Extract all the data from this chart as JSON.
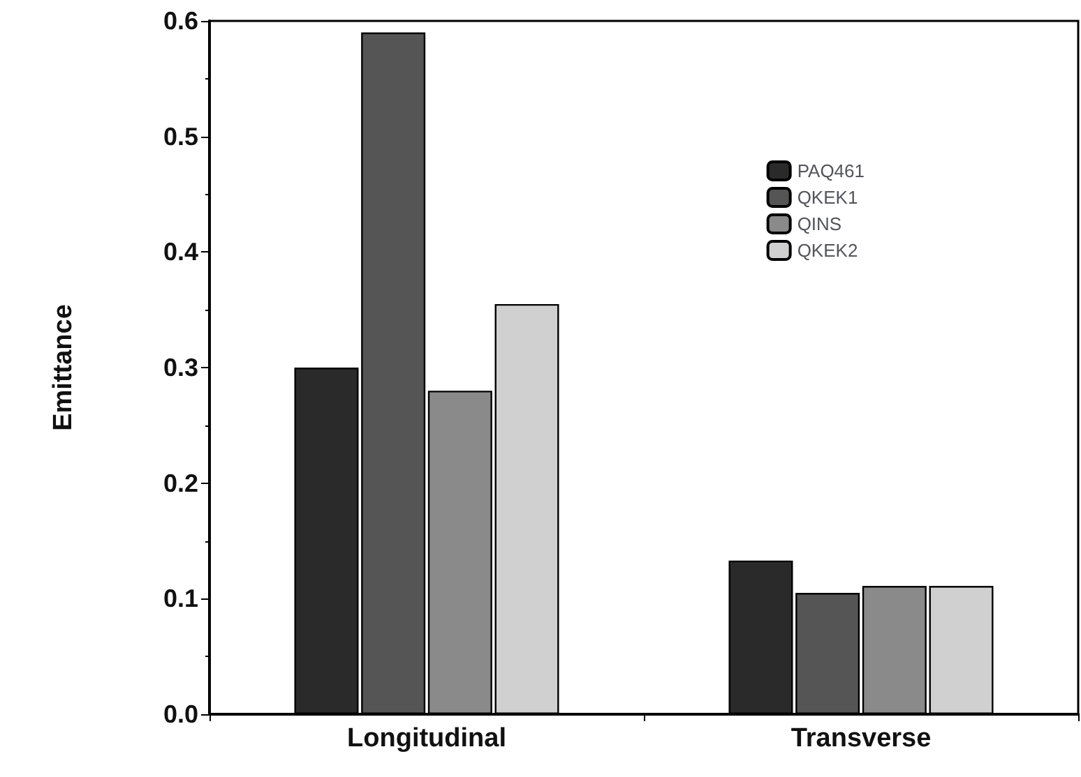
{
  "chart_data": {
    "type": "bar",
    "ylabel": "Emittance",
    "categories": [
      "Longitudinal",
      "Transverse"
    ],
    "series": [
      {
        "name": "PAQ461",
        "color": "#2a2a2a",
        "values": [
          0.3,
          0.133
        ]
      },
      {
        "name": "QKEK1",
        "color": "#555555",
        "values": [
          0.59,
          0.105
        ]
      },
      {
        "name": "QINS",
        "color": "#8a8a8a",
        "values": [
          0.28,
          0.111
        ]
      },
      {
        "name": "QKEK2",
        "color": "#d0d0d0",
        "values": [
          0.355,
          0.111
        ]
      }
    ],
    "ylim": [
      0,
      0.6
    ],
    "yticks": [
      {
        "value": 0,
        "label": "0.0"
      },
      0.1,
      0.2,
      0.3,
      0.4,
      0.5,
      0.6
    ],
    "grid": false,
    "legend": "top right"
  }
}
